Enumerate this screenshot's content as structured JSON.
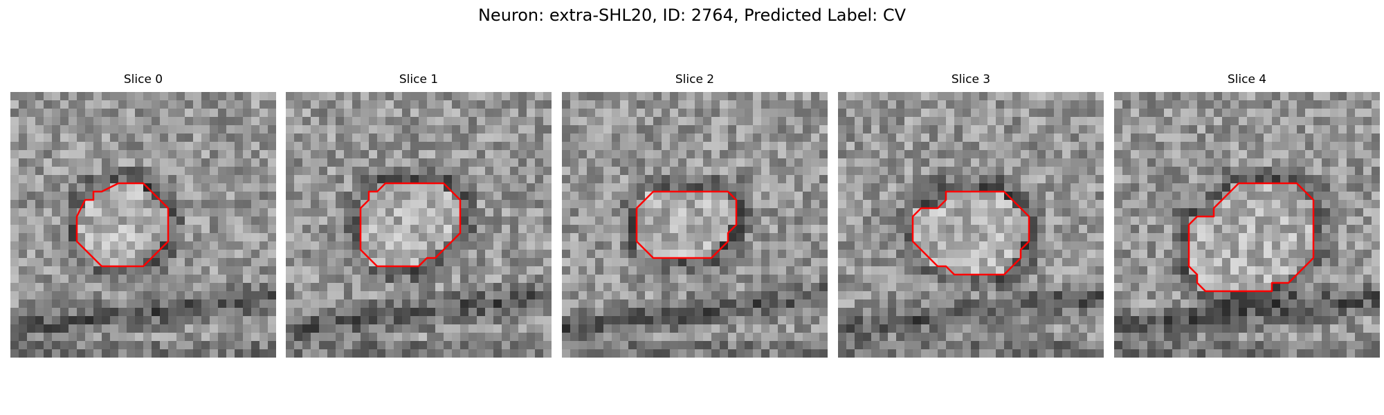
{
  "figure": {
    "title": "Neuron: extra-SHL20, ID: 2764, Predicted Label: CV",
    "contour_color": "#ff0000"
  },
  "panels": [
    {
      "title": "Slice 0",
      "seed": 11,
      "contour": [
        [
          13,
          11
        ],
        [
          16,
          11
        ],
        [
          19,
          14
        ],
        [
          19,
          18
        ],
        [
          16,
          21
        ],
        [
          11,
          21
        ],
        [
          8,
          18
        ],
        [
          8,
          15
        ],
        [
          9,
          13
        ],
        [
          10,
          13
        ],
        [
          10,
          12
        ],
        [
          11,
          12
        ]
      ]
    },
    {
      "title": "Slice 1",
      "seed": 23,
      "contour": [
        [
          12,
          11
        ],
        [
          19,
          11
        ],
        [
          21,
          13
        ],
        [
          21,
          17
        ],
        [
          19,
          19
        ],
        [
          18,
          20
        ],
        [
          17,
          20
        ],
        [
          16,
          21
        ],
        [
          11,
          21
        ],
        [
          9,
          19
        ],
        [
          9,
          14
        ],
        [
          10,
          13
        ],
        [
          10,
          12
        ],
        [
          11,
          12
        ]
      ]
    },
    {
      "title": "Slice 2",
      "seed": 37,
      "contour": [
        [
          15,
          12
        ],
        [
          20,
          12
        ],
        [
          21,
          13
        ],
        [
          21,
          16
        ],
        [
          20,
          17
        ],
        [
          20,
          18
        ],
        [
          18,
          20
        ],
        [
          11,
          20
        ],
        [
          9,
          18
        ],
        [
          9,
          14
        ],
        [
          11,
          12
        ],
        [
          14,
          12
        ]
      ]
    },
    {
      "title": "Slice 3",
      "seed": 51,
      "contour": [
        [
          15,
          12
        ],
        [
          20,
          12
        ],
        [
          23,
          15
        ],
        [
          23,
          18
        ],
        [
          22,
          19
        ],
        [
          22,
          20
        ],
        [
          20,
          22
        ],
        [
          14,
          22
        ],
        [
          13,
          21
        ],
        [
          12,
          21
        ],
        [
          9,
          18
        ],
        [
          9,
          15
        ],
        [
          10,
          14
        ],
        [
          12,
          14
        ],
        [
          13,
          13
        ],
        [
          13,
          12
        ],
        [
          14,
          12
        ]
      ]
    },
    {
      "title": "Slice 4",
      "seed": 67,
      "contour": [
        [
          15,
          11
        ],
        [
          22,
          11
        ],
        [
          24,
          13
        ],
        [
          24,
          20
        ],
        [
          21,
          23
        ],
        [
          19,
          23
        ],
        [
          19,
          24
        ],
        [
          11,
          24
        ],
        [
          10,
          23
        ],
        [
          10,
          22
        ],
        [
          9,
          21
        ],
        [
          9,
          16
        ],
        [
          10,
          15
        ],
        [
          12,
          15
        ],
        [
          12,
          14
        ]
      ]
    }
  ]
}
